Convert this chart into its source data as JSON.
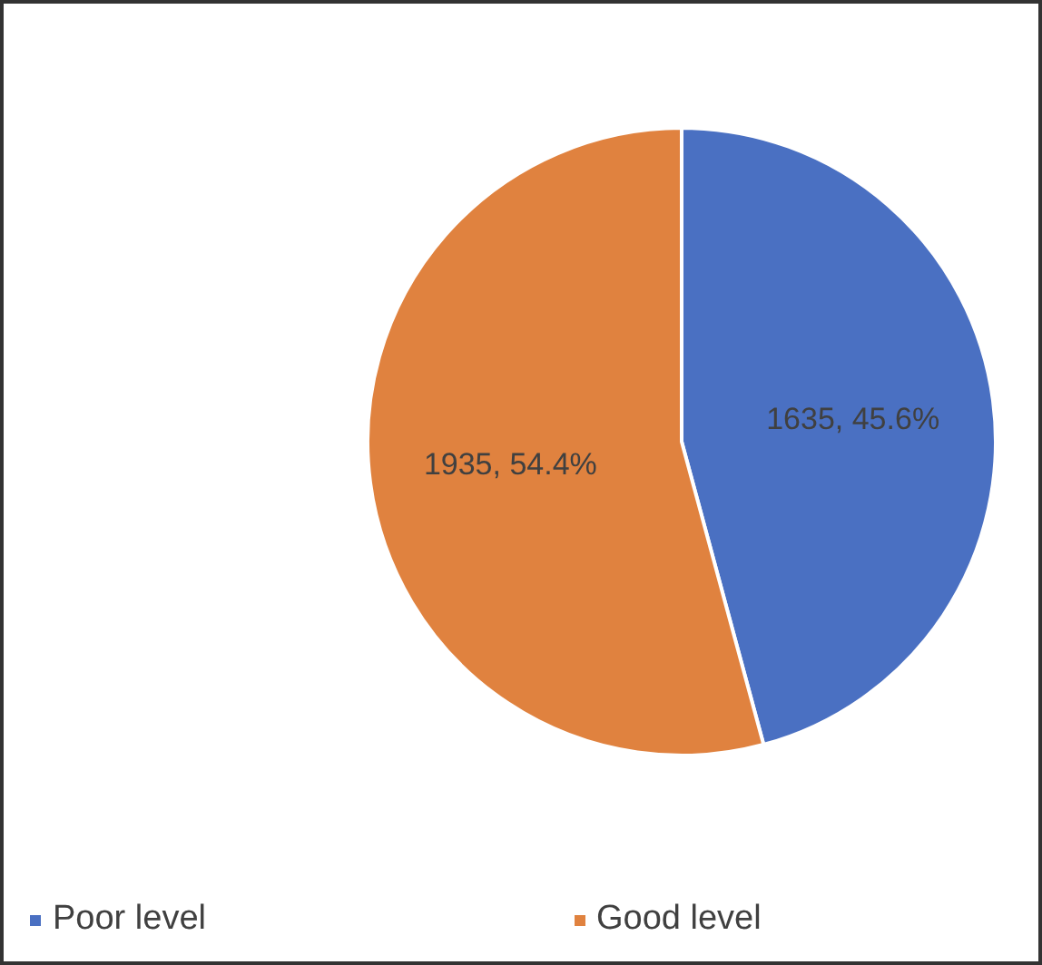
{
  "chart_data": {
    "type": "pie",
    "categories": [
      "Poor level",
      "Good level"
    ],
    "values": [
      1635,
      1935
    ],
    "colors": [
      "#4a70c2",
      "#e0823f"
    ],
    "value_labels": [
      "1635, 45.6%",
      "1935, 54.4%"
    ],
    "legend": "bottom"
  }
}
